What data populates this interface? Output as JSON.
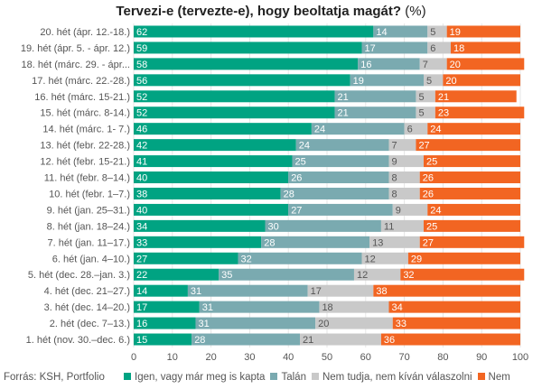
{
  "chart_data": {
    "type": "bar",
    "orientation": "horizontal",
    "stacked": true,
    "title_main": "Tervezi-e (tervezte-e), hogy beoltatja magát?",
    "title_unit": "(%)",
    "xlim": [
      0,
      100
    ],
    "xticks": [
      "0",
      "10",
      "20",
      "30",
      "40",
      "50",
      "60",
      "70",
      "80",
      "90",
      "100"
    ],
    "categories": [
      "20. hét (ápr. 12.-18.)",
      "19. hét (ápr. 5. - ápr. 12.)",
      "18. hét (márc. 29. - ápr...",
      "17. hét (márc. 22.-28.)",
      "16. hét (márc. 15-21.)",
      "15. hét (márc. 8-14.)",
      "14. hét (márc. 1- 7.)",
      "13. hét (febr. 22-28.)",
      "12. hét (febr. 15-21.)",
      "11. hét (febr. 8–14.)",
      "10. hét (febr. 1–7.)",
      "9. hét (jan. 25–31.)",
      "8. hét (jan. 18–24.)",
      "7. hét (jan. 11–17.)",
      "6. hét (jan. 4–10.)",
      "5. hét (dec. 28.–jan. 3.)",
      "4. hét (dec. 21–27.)",
      "3. hét (dec. 14–20.)",
      "2. hét (dec. 7–13.)",
      "1. hét (nov. 30.–dec. 6.)"
    ],
    "series": [
      {
        "name": "Igen, vagy már meg is kapta",
        "color": "#00a382",
        "label_color": "#ffffff",
        "values": [
          62,
          59,
          58,
          56,
          52,
          52,
          46,
          42,
          41,
          40,
          38,
          40,
          34,
          33,
          27,
          22,
          14,
          17,
          16,
          15
        ]
      },
      {
        "name": "Talán",
        "color": "#7aaab0",
        "label_color": "#ffffff",
        "values": [
          14,
          17,
          16,
          19,
          21,
          21,
          24,
          24,
          25,
          26,
          28,
          27,
          30,
          28,
          32,
          35,
          31,
          31,
          31,
          28
        ]
      },
      {
        "name": "Nem tudja, nem kíván válaszolni",
        "color": "#c9c9c9",
        "label_color": "#555555",
        "values": [
          5,
          6,
          7,
          5,
          5,
          5,
          6,
          7,
          9,
          8,
          8,
          9,
          11,
          13,
          12,
          12,
          17,
          18,
          20,
          21
        ]
      },
      {
        "name": "Nem",
        "color": "#f26522",
        "label_color": "#ffffff",
        "values": [
          19,
          18,
          20,
          20,
          21,
          23,
          24,
          27,
          25,
          26,
          26,
          24,
          25,
          27,
          29,
          32,
          38,
          34,
          33,
          36
        ]
      }
    ],
    "grid": true,
    "legend_position": "bottom"
  },
  "footer": {
    "source": "Forrás: KSH, Portfolio"
  }
}
